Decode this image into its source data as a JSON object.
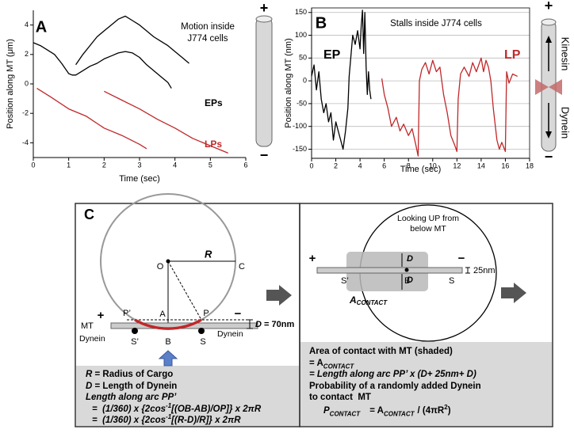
{
  "chart_data": [
    {
      "type": "line",
      "panel": "A",
      "annotation": [
        "Motion inside",
        "J774 cells"
      ],
      "xlabel": "Time (sec)",
      "ylabel": "Position along MT (μm)",
      "xlim": [
        0,
        6
      ],
      "xticks": [
        0,
        1,
        2,
        3,
        4,
        5,
        6
      ],
      "ylim": [
        -5,
        5
      ],
      "yticks": [
        -4,
        -2,
        0,
        2,
        4
      ],
      "grid": false,
      "poles": [
        "+",
        "−"
      ],
      "series": [
        {
          "name": "EPs",
          "color": "#000000",
          "x": [
            0,
            0.2,
            0.4,
            0.6,
            0.8,
            1.0,
            1.1,
            1.2,
            1.4,
            1.6,
            1.8,
            2.0,
            2.2,
            2.4,
            2.6,
            2.8,
            3.0,
            3.2,
            3.4,
            3.6,
            3.8,
            3.9
          ],
          "values": [
            2.8,
            2.6,
            2.3,
            2.0,
            1.4,
            0.7,
            0.6,
            0.6,
            0.9,
            1.2,
            1.4,
            1.7,
            1.9,
            2.1,
            2.2,
            2.1,
            1.8,
            1.3,
            0.9,
            0.5,
            0.1,
            -0.3
          ]
        },
        {
          "color": "#000000",
          "x": [
            1.2,
            1.4,
            1.6,
            1.8,
            2.0,
            2.2,
            2.4,
            2.6,
            2.8,
            3.0,
            3.2,
            3.4,
            3.6,
            3.8,
            4.0,
            4.2,
            4.4
          ],
          "values": [
            1.3,
            2.0,
            2.6,
            3.2,
            3.6,
            4.0,
            4.4,
            4.6,
            4.3,
            4.0,
            3.6,
            3.2,
            2.9,
            2.6,
            2.2,
            1.8,
            1.4
          ]
        },
        {
          "name": "LPs",
          "color": "#c0282a",
          "x": [
            0.1,
            0.5,
            1.0,
            1.5,
            2.0,
            2.5,
            3.0,
            3.2
          ],
          "values": [
            -0.3,
            -0.9,
            -1.7,
            -2.2,
            -3.0,
            -3.5,
            -4.1,
            -4.4
          ]
        },
        {
          "color": "#c0282a",
          "x": [
            2.0,
            2.5,
            3.0,
            3.5,
            4.0,
            4.5,
            5.0,
            5.5
          ],
          "values": [
            -0.5,
            -1.1,
            -1.7,
            -2.4,
            -3.0,
            -3.7,
            -4.2,
            -4.7
          ]
        }
      ]
    },
    {
      "type": "line",
      "panel": "B",
      "annotation": [
        "Stalls inside J774 cells"
      ],
      "xlabel": "Time (sec)",
      "ylabel": "Position along MT (nm)",
      "xlim": [
        0,
        18
      ],
      "xticks": [
        0,
        2,
        4,
        6,
        8,
        10,
        12,
        14,
        16,
        18
      ],
      "ylim": [
        -170,
        160
      ],
      "yticks": [
        -150,
        -100,
        -50,
        0,
        50,
        100,
        150
      ],
      "grid": true,
      "poles": [
        "+",
        "−"
      ],
      "motors": [
        "Kinesin",
        "Dynein"
      ],
      "series": [
        {
          "name": "EP",
          "color": "#000000",
          "x": [
            0,
            0.2,
            0.4,
            0.6,
            0.8,
            1.0,
            1.2,
            1.4,
            1.6,
            1.8,
            2.0,
            2.2,
            2.4,
            2.6,
            2.8,
            3.0,
            3.1,
            3.2,
            3.4,
            3.6,
            3.8,
            4.0,
            4.1,
            4.2,
            4.3,
            4.4,
            4.5,
            4.6,
            4.7,
            4.8,
            4.9
          ],
          "values": [
            10,
            35,
            -20,
            20,
            -40,
            -70,
            -50,
            -90,
            -70,
            -130,
            -90,
            -110,
            -130,
            -150,
            -110,
            -60,
            10,
            40,
            100,
            80,
            110,
            70,
            120,
            155,
            60,
            150,
            30,
            -30,
            20,
            -20,
            -40
          ]
        },
        {
          "name": "LP",
          "color": "#c0282a",
          "x": [
            5.8,
            6.0,
            6.3,
            6.6,
            7.0,
            7.3,
            7.6,
            8.0,
            8.3,
            8.6,
            8.8,
            8.9,
            9.1,
            9.4,
            9.7,
            10.0,
            10.3,
            10.6,
            10.9,
            11.2,
            11.5,
            11.8,
            12.0,
            12.1,
            12.3,
            12.6,
            13.0,
            13.3,
            13.6,
            14.0,
            14.2,
            14.4,
            14.6,
            14.8,
            15.0,
            15.3,
            15.5,
            15.7,
            16.0,
            16.1,
            16.3,
            16.6,
            17.0
          ],
          "values": [
            5,
            -30,
            -60,
            -100,
            -80,
            -110,
            -95,
            -120,
            -105,
            -140,
            -165,
            0,
            25,
            40,
            15,
            45,
            20,
            30,
            -30,
            -70,
            -120,
            -140,
            -155,
            -40,
            15,
            30,
            10,
            40,
            20,
            50,
            20,
            45,
            30,
            0,
            -60,
            -130,
            -150,
            -135,
            -155,
            20,
            -5,
            15,
            10
          ]
        }
      ]
    }
  ],
  "diagram": {
    "panel": "C",
    "left": {
      "O": "O",
      "R": "R",
      "C": "C",
      "A": "A",
      "P_prime": "P’",
      "P": "P",
      "MT": "MT",
      "plus": "+",
      "minus": "−",
      "D": "D",
      "D_value": "= 70nm",
      "S_prime": "S’",
      "B": "B",
      "S": "S",
      "dynein": [
        "Dynein",
        "Dynein"
      ],
      "text": [
        [
          "R",
          "= Radius of Cargo"
        ],
        [
          "D",
          "= Length of Dynein"
        ],
        [
          "Length along arc PP’"
        ],
        [
          "=  (1/360) x {2cos",
          "-1",
          "[(OB-AB)/OP]} x 2πR"
        ],
        [
          "=  (1/360) x {2cos",
          "-1",
          "[(R-D)/R]} x 2πR"
        ]
      ]
    },
    "right": {
      "title": [
        "Looking UP from",
        "below MT"
      ],
      "plus": "+",
      "minus": "−",
      "D": [
        "D",
        "D"
      ],
      "thickness": "25nm",
      "S_prime": "S’",
      "B": "B",
      "S": "S",
      "area": [
        "A",
        "CONTACT"
      ],
      "text": [
        [
          "Area of contact with MT (shaded)"
        ],
        [
          "= A",
          "CONTACT"
        ],
        [
          "= Length along arc PP’ x (D+ 25nm+ D)"
        ],
        [
          "Probability of a randomly added Dynein"
        ],
        [
          "to contact  MT"
        ],
        [
          "P",
          "CONTACT",
          "= A",
          "CONTACT",
          "/ (4πR",
          "2",
          ")"
        ]
      ]
    }
  }
}
